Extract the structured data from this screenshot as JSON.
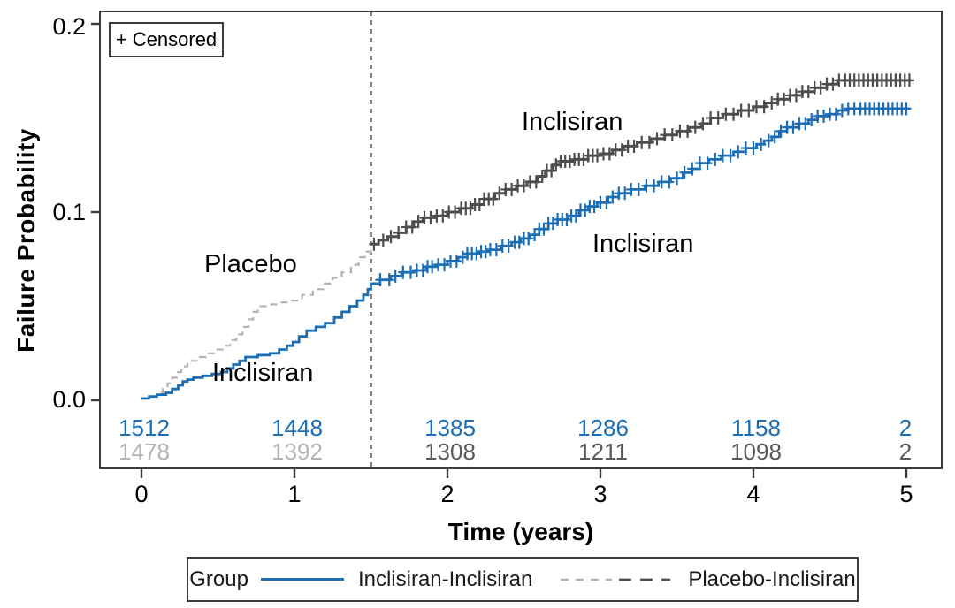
{
  "chart_data": {
    "type": "line",
    "subtype": "kaplan-meier-failure-probability",
    "title": "",
    "xlabel": "Time (years)",
    "ylabel": "Failure Probability",
    "xlim": [
      0,
      5
    ],
    "ylim": [
      0,
      0.2
    ],
    "x_ticks": [
      "0",
      "1",
      "2",
      "3",
      "4",
      "5"
    ],
    "y_ticks": [
      "0.0",
      "0.1",
      "0.2"
    ],
    "grid": false,
    "legend_position": "bottom",
    "censored_label": "+ Censored",
    "reference_line_x": 1.5,
    "colors": {
      "inclisiran_inclisiran": "#1b6db4",
      "placebo_pre_switch": "#b3b3b3",
      "placebo_post_switch": "#4d4d4d",
      "axis": "#3c3c3c",
      "reference_line": "#1a1a1a",
      "risk_gray_light": "#b3b3b3",
      "risk_gray_dark": "#595959"
    },
    "curve_labels": [
      {
        "for": "placebo-pre-switch",
        "text": "Placebo"
      },
      {
        "for": "inclisiran-pre-switch",
        "text": "Inclisiran"
      },
      {
        "for": "placebo-arm-post-switch",
        "text": "Inclisiran"
      },
      {
        "for": "inclisiran-arm-post-switch",
        "text": "Inclisiran"
      }
    ],
    "series": [
      {
        "name": "Inclisiran-Inclisiran",
        "style": "solid",
        "color_key": "inclisiran_inclisiran",
        "points": [
          [
            0,
            0.001
          ],
          [
            0.05,
            0.002
          ],
          [
            0.1,
            0.003
          ],
          [
            0.16,
            0.004
          ],
          [
            0.2,
            0.006
          ],
          [
            0.24,
            0.008
          ],
          [
            0.27,
            0.01
          ],
          [
            0.3,
            0.011
          ],
          [
            0.34,
            0.012
          ],
          [
            0.4,
            0.013
          ],
          [
            0.46,
            0.014
          ],
          [
            0.52,
            0.015
          ],
          [
            0.56,
            0.017
          ],
          [
            0.6,
            0.019
          ],
          [
            0.64,
            0.021
          ],
          [
            0.68,
            0.023
          ],
          [
            0.76,
            0.024
          ],
          [
            0.84,
            0.025
          ],
          [
            0.9,
            0.027
          ],
          [
            0.95,
            0.029
          ],
          [
            0.99,
            0.031
          ],
          [
            1.03,
            0.034
          ],
          [
            1.08,
            0.037
          ],
          [
            1.14,
            0.039
          ],
          [
            1.2,
            0.041
          ],
          [
            1.26,
            0.044
          ],
          [
            1.31,
            0.047
          ],
          [
            1.36,
            0.05
          ],
          [
            1.41,
            0.053
          ],
          [
            1.45,
            0.056
          ],
          [
            1.48,
            0.059
          ],
          [
            1.5,
            0.062
          ],
          [
            1.56,
            0.064
          ],
          [
            1.63,
            0.066
          ],
          [
            1.7,
            0.068
          ],
          [
            1.78,
            0.069
          ],
          [
            1.86,
            0.071
          ],
          [
            1.93,
            0.072
          ],
          [
            2.0,
            0.074
          ],
          [
            2.07,
            0.076
          ],
          [
            2.13,
            0.078
          ],
          [
            2.2,
            0.079
          ],
          [
            2.26,
            0.08
          ],
          [
            2.35,
            0.082
          ],
          [
            2.42,
            0.084
          ],
          [
            2.48,
            0.086
          ],
          [
            2.54,
            0.088
          ],
          [
            2.6,
            0.091
          ],
          [
            2.66,
            0.094
          ],
          [
            2.72,
            0.096
          ],
          [
            2.79,
            0.098
          ],
          [
            2.86,
            0.101
          ],
          [
            2.92,
            0.103
          ],
          [
            2.98,
            0.105
          ],
          [
            3.05,
            0.108
          ],
          [
            3.12,
            0.11
          ],
          [
            3.2,
            0.112
          ],
          [
            3.29,
            0.114
          ],
          [
            3.38,
            0.116
          ],
          [
            3.46,
            0.118
          ],
          [
            3.54,
            0.121
          ],
          [
            3.6,
            0.123
          ],
          [
            3.65,
            0.126
          ],
          [
            3.71,
            0.128
          ],
          [
            3.79,
            0.13
          ],
          [
            3.87,
            0.132
          ],
          [
            3.95,
            0.134
          ],
          [
            4.02,
            0.136
          ],
          [
            4.07,
            0.138
          ],
          [
            4.12,
            0.14
          ],
          [
            4.17,
            0.143
          ],
          [
            4.22,
            0.145
          ],
          [
            4.3,
            0.147
          ],
          [
            4.36,
            0.149
          ],
          [
            4.42,
            0.151
          ],
          [
            4.5,
            0.152
          ],
          [
            4.55,
            0.154
          ],
          [
            4.62,
            0.155
          ],
          [
            5.02,
            0.155
          ]
        ],
        "censor_x": [
          1.56,
          1.62,
          1.66,
          1.71,
          1.76,
          1.8,
          1.84,
          1.87,
          1.9,
          1.94,
          1.98,
          2.02,
          2.06,
          2.1,
          2.13,
          2.16,
          2.19,
          2.22,
          2.25,
          2.28,
          2.32,
          2.36,
          2.4,
          2.44,
          2.47,
          2.5,
          2.53,
          2.57,
          2.6,
          2.63,
          2.66,
          2.69,
          2.72,
          2.75,
          2.78,
          2.81,
          2.84,
          2.87,
          2.9,
          2.93,
          2.96,
          3.0,
          3.04,
          3.08,
          3.12,
          3.16,
          3.2,
          3.25,
          3.3,
          3.35,
          3.4,
          3.45,
          3.5,
          3.55,
          3.6,
          3.65,
          3.7,
          3.75,
          3.8,
          3.85,
          3.9,
          3.95,
          4.0,
          4.05,
          4.1,
          4.14,
          4.18,
          4.22,
          4.26,
          4.3,
          4.34,
          4.38,
          4.42,
          4.46,
          4.5,
          4.54,
          4.58,
          4.62,
          4.66,
          4.7,
          4.73,
          4.76,
          4.79,
          4.82,
          4.85,
          4.88,
          4.91,
          4.94,
          4.97,
          5.0
        ]
      },
      {
        "name": "Placebo-Inclisiran",
        "style": "dashed-before-switch-solid-after",
        "color_key_pre": "placebo_pre_switch",
        "color_key_post": "placebo_post_switch",
        "switch_x": 1.5,
        "points": [
          [
            0,
            0.001
          ],
          [
            0.06,
            0.002
          ],
          [
            0.1,
            0.004
          ],
          [
            0.14,
            0.006
          ],
          [
            0.17,
            0.009
          ],
          [
            0.2,
            0.012
          ],
          [
            0.23,
            0.015
          ],
          [
            0.26,
            0.018
          ],
          [
            0.3,
            0.021
          ],
          [
            0.36,
            0.023
          ],
          [
            0.42,
            0.025
          ],
          [
            0.48,
            0.027
          ],
          [
            0.53,
            0.029
          ],
          [
            0.58,
            0.032
          ],
          [
            0.62,
            0.035
          ],
          [
            0.66,
            0.039
          ],
          [
            0.7,
            0.043
          ],
          [
            0.73,
            0.047
          ],
          [
            0.76,
            0.05
          ],
          [
            0.82,
            0.051
          ],
          [
            0.9,
            0.052
          ],
          [
            0.98,
            0.053
          ],
          [
            1.05,
            0.056
          ],
          [
            1.12,
            0.059
          ],
          [
            1.19,
            0.062
          ],
          [
            1.25,
            0.065
          ],
          [
            1.31,
            0.068
          ],
          [
            1.37,
            0.072
          ],
          [
            1.42,
            0.076
          ],
          [
            1.46,
            0.079
          ],
          [
            1.5,
            0.083
          ],
          [
            1.55,
            0.085
          ],
          [
            1.61,
            0.087
          ],
          [
            1.68,
            0.089
          ],
          [
            1.73,
            0.092
          ],
          [
            1.78,
            0.095
          ],
          [
            1.84,
            0.097
          ],
          [
            1.92,
            0.098
          ],
          [
            2.0,
            0.1
          ],
          [
            2.08,
            0.102
          ],
          [
            2.16,
            0.104
          ],
          [
            2.24,
            0.107
          ],
          [
            2.31,
            0.11
          ],
          [
            2.38,
            0.112
          ],
          [
            2.45,
            0.114
          ],
          [
            2.52,
            0.116
          ],
          [
            2.59,
            0.119
          ],
          [
            2.64,
            0.122
          ],
          [
            2.69,
            0.125
          ],
          [
            2.74,
            0.127
          ],
          [
            2.83,
            0.128
          ],
          [
            2.92,
            0.13
          ],
          [
            3.0,
            0.131
          ],
          [
            3.08,
            0.133
          ],
          [
            3.15,
            0.135
          ],
          [
            3.24,
            0.137
          ],
          [
            3.33,
            0.139
          ],
          [
            3.42,
            0.141
          ],
          [
            3.5,
            0.143
          ],
          [
            3.58,
            0.145
          ],
          [
            3.66,
            0.147
          ],
          [
            3.72,
            0.15
          ],
          [
            3.8,
            0.152
          ],
          [
            3.9,
            0.154
          ],
          [
            4.0,
            0.156
          ],
          [
            4.08,
            0.158
          ],
          [
            4.16,
            0.16
          ],
          [
            4.24,
            0.162
          ],
          [
            4.32,
            0.164
          ],
          [
            4.4,
            0.166
          ],
          [
            4.48,
            0.168
          ],
          [
            4.55,
            0.17
          ],
          [
            5.03,
            0.17
          ]
        ],
        "censor_x": [
          1.52,
          1.58,
          1.63,
          1.68,
          1.73,
          1.77,
          1.81,
          1.85,
          1.89,
          1.93,
          1.97,
          2.01,
          2.05,
          2.09,
          2.12,
          2.15,
          2.18,
          2.21,
          2.24,
          2.27,
          2.3,
          2.34,
          2.38,
          2.42,
          2.46,
          2.5,
          2.54,
          2.58,
          2.62,
          2.65,
          2.68,
          2.71,
          2.74,
          2.77,
          2.8,
          2.83,
          2.86,
          2.89,
          2.92,
          2.95,
          2.98,
          3.02,
          3.06,
          3.1,
          3.14,
          3.18,
          3.22,
          3.27,
          3.32,
          3.37,
          3.42,
          3.47,
          3.52,
          3.57,
          3.62,
          3.67,
          3.72,
          3.77,
          3.82,
          3.87,
          3.92,
          3.97,
          4.02,
          4.07,
          4.12,
          4.16,
          4.2,
          4.24,
          4.28,
          4.32,
          4.36,
          4.4,
          4.44,
          4.48,
          4.52,
          4.56,
          4.6,
          4.63,
          4.66,
          4.69,
          4.72,
          4.75,
          4.78,
          4.81,
          4.84,
          4.87,
          4.9,
          4.93,
          4.96,
          4.99,
          5.02
        ]
      }
    ],
    "risk_table": {
      "rows": [
        {
          "group": "Inclisiran-Inclisiran",
          "color": "#1b6db4",
          "counts": [
            "1512",
            "1448",
            "1385",
            "1286",
            "1158",
            "2"
          ]
        },
        {
          "group": "Placebo-Inclisiran",
          "color": "#595959",
          "counts": [
            "1478",
            "1392",
            "1308",
            "1211",
            "1098",
            "2"
          ],
          "count_colors": [
            "#b3b3b3",
            "#b3b3b3",
            "#595959",
            "#595959",
            "#595959",
            "#595959"
          ]
        }
      ]
    },
    "legend": {
      "title": "Group",
      "entries": [
        "Inclisiran-Inclisiran",
        "Placebo-Inclisiran"
      ]
    }
  }
}
